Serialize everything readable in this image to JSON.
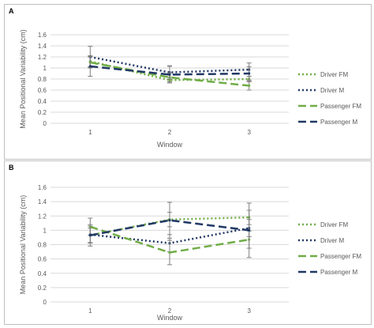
{
  "colors": {
    "driver_fm": "#70ad47",
    "driver_m": "#203864",
    "passenger_fm": "#70ad47",
    "passenger_m": "#203864",
    "gridline": "#d9d9d9",
    "axis_text": "#595959",
    "error_bar": "#7f7f7f"
  },
  "chart_data": [
    {
      "panel_label": "A",
      "type": "line",
      "xlabel": "Window",
      "ylabel": "Mean Positional Variability (cm)",
      "x": [
        1,
        2,
        3
      ],
      "ylim": [
        0,
        1.6
      ],
      "yticks": [
        "0",
        "0.2",
        "0.4",
        "0.6",
        "0.8",
        "1",
        "1.2",
        "1.4",
        "1.6"
      ],
      "grid": true,
      "legend_position": "right",
      "series": [
        {
          "name": "Driver FM",
          "style": "dotted",
          "color": "#70ad47",
          "values": [
            1.12,
            0.78,
            0.8
          ],
          "error": [
            0.1,
            0.05,
            0.05
          ]
        },
        {
          "name": "Driver M",
          "style": "dotted",
          "color": "#203864",
          "values": [
            1.2,
            0.92,
            0.97
          ],
          "error": [
            0.19,
            0.12,
            0.12
          ]
        },
        {
          "name": "Passenger FM",
          "style": "dashed",
          "color": "#70ad47",
          "values": [
            1.1,
            0.83,
            0.68
          ],
          "error": [
            0.1,
            0.08,
            0.08
          ]
        },
        {
          "name": "Passenger M",
          "style": "dashed",
          "color": "#203864",
          "values": [
            1.03,
            0.88,
            0.9
          ],
          "error": [
            0.18,
            0.15,
            0.12
          ]
        }
      ]
    },
    {
      "panel_label": "B",
      "type": "line",
      "xlabel": "Window",
      "ylabel": "Mean Positional Variability (cm)",
      "x": [
        1,
        2,
        3
      ],
      "ylim": [
        0,
        1.6
      ],
      "yticks": [
        "0",
        "0.2",
        "0.4",
        "0.6",
        "0.8",
        "1",
        "1.2",
        "1.4",
        "1.6"
      ],
      "grid": true,
      "legend_position": "right",
      "series": [
        {
          "name": "Driver FM",
          "style": "dotted",
          "color": "#70ad47",
          "values": [
            0.93,
            1.15,
            1.18
          ],
          "error": [
            0.1,
            0.1,
            0.1
          ]
        },
        {
          "name": "Driver M",
          "style": "dotted",
          "color": "#203864",
          "values": [
            0.94,
            0.82,
            1.03
          ],
          "error": [
            0.12,
            0.12,
            0.12
          ]
        },
        {
          "name": "Passenger FM",
          "style": "dashed",
          "color": "#70ad47",
          "values": [
            1.05,
            0.69,
            0.87
          ],
          "error": [
            0.12,
            0.17,
            0.12
          ]
        },
        {
          "name": "Passenger M",
          "style": "dashed",
          "color": "#203864",
          "values": [
            0.93,
            1.14,
            1.0
          ],
          "error": [
            0.15,
            0.25,
            0.38
          ]
        }
      ]
    }
  ]
}
